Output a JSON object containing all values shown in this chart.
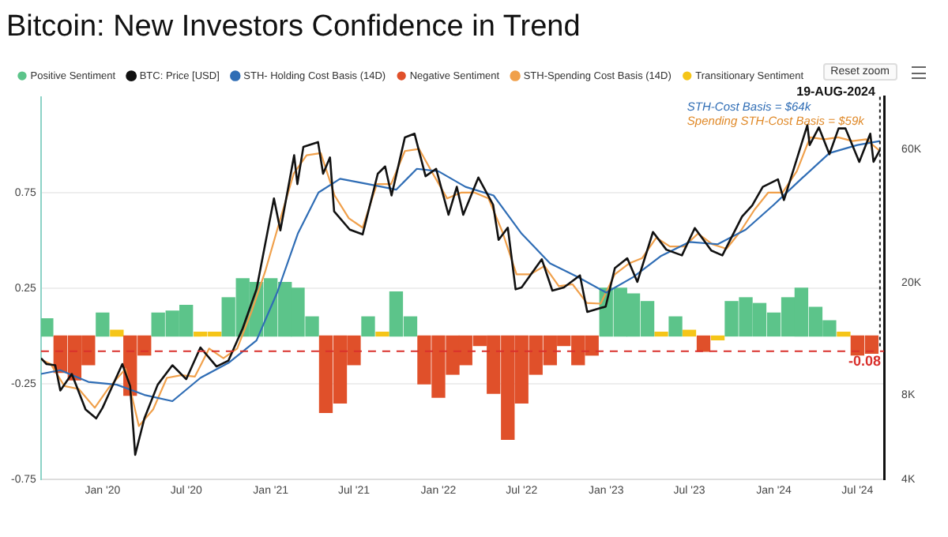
{
  "chart_data": {
    "type": "bar",
    "title": "Bitcoin: New Investors Confidence in Trend",
    "xlim": [
      "2019-08-20",
      "2024-08-28"
    ],
    "xticks": [
      {
        "value": "2020-01-01",
        "label": "Jan '20"
      },
      {
        "value": "2020-07-01",
        "label": "Jul '20"
      },
      {
        "value": "2021-01-01",
        "label": "Jan '21"
      },
      {
        "value": "2021-07-01",
        "label": "Jul '21"
      },
      {
        "value": "2022-01-01",
        "label": "Jan '22"
      },
      {
        "value": "2022-07-01",
        "label": "Jul '22"
      },
      {
        "value": "2023-01-01",
        "label": "Jan '23"
      },
      {
        "value": "2023-07-01",
        "label": "Jul '23"
      },
      {
        "value": "2024-01-01",
        "label": "Jan '24"
      },
      {
        "value": "2024-07-01",
        "label": "Jul '24"
      }
    ],
    "ylim": [
      -0.75,
      1.25
    ],
    "yticks": [
      -0.75,
      -0.25,
      0.25,
      0.75
    ],
    "y2lim": [
      4000,
      92000
    ],
    "y2ticks": [
      {
        "value": 4000,
        "label": "4K"
      },
      {
        "value": 8000,
        "label": "8K"
      },
      {
        "value": 20000,
        "label": "20K"
      },
      {
        "value": 60000,
        "label": "60K"
      }
    ],
    "log": "y2",
    "grid": "y",
    "legend": "top",
    "marker": "none",
    "line_style": "solid",
    "series": [
      {
        "name": "Positive Sentiment",
        "color": "#5cc48a",
        "x": [
          "2019-09",
          "2020-01",
          "2020-05",
          "2020-06",
          "2020-07",
          "2020-10",
          "2020-11",
          "2020-12",
          "2021-01",
          "2021-02",
          "2021-03",
          "2021-04",
          "2021-08",
          "2021-10",
          "2021-11",
          "2023-01",
          "2023-02",
          "2023-03",
          "2023-04",
          "2023-06",
          "2023-10",
          "2023-11",
          "2023-12",
          "2024-01",
          "2024-02",
          "2024-03",
          "2024-04",
          "2024-05"
        ],
        "values": [
          0.09,
          0.12,
          0.12,
          0.13,
          0.16,
          0.2,
          0.3,
          0.28,
          0.3,
          0.28,
          0.25,
          0.1,
          0.1,
          0.23,
          0.1,
          0.25,
          0.25,
          0.22,
          0.18,
          0.1,
          0.18,
          0.2,
          0.17,
          0.12,
          0.2,
          0.25,
          0.15,
          0.08
        ]
      },
      {
        "name": "BTC: Price [USD]",
        "type": "line",
        "axis": "y2",
        "color": "#111111",
        "x": [
          "2019-08-20",
          "2019-09-01",
          "2019-09-20",
          "2019-10-01",
          "2019-10-26",
          "2019-11-25",
          "2019-12-18",
          "2020-01-01",
          "2020-02-13",
          "2020-03-01",
          "2020-03-12",
          "2020-04-01",
          "2020-04-30",
          "2020-06-01",
          "2020-07-01",
          "2020-08-01",
          "2020-09-05",
          "2020-10-01",
          "2020-11-01",
          "2020-12-01",
          "2021-01-08",
          "2021-01-22",
          "2021-02-21",
          "2021-02-28",
          "2021-03-13",
          "2021-04-14",
          "2021-04-25",
          "2021-05-10",
          "2021-05-19",
          "2021-06-22",
          "2021-07-20",
          "2021-08-22",
          "2021-09-07",
          "2021-09-21",
          "2021-10-20",
          "2021-11-10",
          "2021-12-04",
          "2021-12-27",
          "2022-01-23",
          "2022-02-10",
          "2022-02-24",
          "2022-03-29",
          "2022-04-30",
          "2022-05-12",
          "2022-06-01",
          "2022-06-18",
          "2022-07-01",
          "2022-08-14",
          "2022-09-06",
          "2022-10-01",
          "2022-11-05",
          "2022-11-21",
          "2022-12-31",
          "2023-01-20",
          "2023-02-16",
          "2023-03-10",
          "2023-04-13",
          "2023-05-12",
          "2023-06-15",
          "2023-07-13",
          "2023-08-18",
          "2023-09-11",
          "2023-10-24",
          "2023-11-15",
          "2023-12-08",
          "2024-01-10",
          "2024-01-23",
          "2024-02-15",
          "2024-03-14",
          "2024-03-19",
          "2024-04-08",
          "2024-05-01",
          "2024-05-21",
          "2024-06-05",
          "2024-07-05",
          "2024-07-29",
          "2024-08-05",
          "2024-08-19"
        ],
        "values": [
          10800,
          10300,
          10200,
          8300,
          9500,
          7100,
          6600,
          7200,
          10300,
          8600,
          4900,
          6600,
          8700,
          10200,
          9100,
          11800,
          10100,
          10600,
          13800,
          19000,
          40000,
          30800,
          57000,
          45000,
          61000,
          63500,
          49000,
          56000,
          36000,
          31000,
          29800,
          49000,
          52000,
          41000,
          66000,
          68000,
          48000,
          51000,
          35000,
          44000,
          35000,
          47500,
          38000,
          28500,
          31500,
          19000,
          19300,
          24300,
          18800,
          19300,
          21300,
          15800,
          16500,
          22600,
          24500,
          20200,
          30400,
          26300,
          25100,
          31400,
          26100,
          25100,
          34500,
          37800,
          44000,
          46800,
          39500,
          52000,
          73000,
          62000,
          71600,
          57500,
          71000,
          71000,
          54000,
          68000,
          54000,
          59500
        ]
      },
      {
        "name": "STH- Holding Cost Basis (14D)",
        "type": "line",
        "axis": "y2",
        "color": "#2f6db5",
        "x": [
          "2019-08-20",
          "2019-10-01",
          "2019-12-01",
          "2020-02-01",
          "2020-04-01",
          "2020-06-01",
          "2020-08-01",
          "2020-10-01",
          "2020-12-01",
          "2021-01-15",
          "2021-03-01",
          "2021-04-15",
          "2021-06-01",
          "2021-08-01",
          "2021-10-01",
          "2021-11-15",
          "2022-01-01",
          "2022-03-01",
          "2022-05-01",
          "2022-07-01",
          "2022-09-01",
          "2022-11-01",
          "2023-01-01",
          "2023-03-01",
          "2023-05-01",
          "2023-07-01",
          "2023-09-01",
          "2023-11-01",
          "2024-01-01",
          "2024-03-01",
          "2024-05-01",
          "2024-07-01",
          "2024-08-19"
        ],
        "values": [
          9500,
          9800,
          8900,
          8700,
          8000,
          7600,
          9200,
          10400,
          12500,
          18500,
          30000,
          42000,
          47000,
          45000,
          43000,
          51000,
          50000,
          44000,
          41000,
          30000,
          23500,
          21000,
          18500,
          21000,
          25000,
          28000,
          27500,
          31000,
          38000,
          47000,
          58000,
          62000,
          64000
        ]
      },
      {
        "name": "Negative Sentiment",
        "color": "#e0502a",
        "x": [
          "2019-10",
          "2019-11",
          "2019-12",
          "2020-03",
          "2020-04",
          "2021-05",
          "2021-06",
          "2021-07",
          "2021-12",
          "2022-01",
          "2022-02",
          "2022-03",
          "2022-04",
          "2022-05",
          "2022-06",
          "2022-07",
          "2022-08",
          "2022-09",
          "2022-10",
          "2022-11",
          "2022-12",
          "2023-08",
          "2024-07",
          "2024-08"
        ],
        "values": [
          -0.19,
          -0.23,
          -0.15,
          -0.31,
          -0.1,
          -0.4,
          -0.35,
          -0.15,
          -0.25,
          -0.32,
          -0.2,
          -0.15,
          -0.05,
          -0.3,
          -0.54,
          -0.35,
          -0.2,
          -0.15,
          -0.05,
          -0.15,
          -0.1,
          -0.08,
          -0.1,
          -0.09
        ]
      },
      {
        "name": "STH-Spending Cost Basis (14D)",
        "type": "line",
        "axis": "y2",
        "color": "#f0a04b",
        "x": [
          "2019-08-20",
          "2019-09-10",
          "2019-10-10",
          "2019-11-10",
          "2019-12-15",
          "2020-01-15",
          "2020-02-20",
          "2020-03-20",
          "2020-04-20",
          "2020-05-20",
          "2020-06-20",
          "2020-07-20",
          "2020-08-20",
          "2020-09-20",
          "2020-10-20",
          "2020-11-20",
          "2020-12-20",
          "2021-01-20",
          "2021-02-20",
          "2021-03-20",
          "2021-04-20",
          "2021-05-20",
          "2021-06-20",
          "2021-07-20",
          "2021-08-20",
          "2021-09-20",
          "2021-10-20",
          "2021-11-20",
          "2021-12-20",
          "2022-01-20",
          "2022-02-20",
          "2022-03-20",
          "2022-04-20",
          "2022-05-20",
          "2022-06-20",
          "2022-07-20",
          "2022-08-20",
          "2022-09-20",
          "2022-10-20",
          "2022-11-20",
          "2022-12-20",
          "2023-01-20",
          "2023-02-20",
          "2023-03-20",
          "2023-04-20",
          "2023-05-20",
          "2023-06-20",
          "2023-07-20",
          "2023-08-20",
          "2023-09-20",
          "2023-10-20",
          "2023-11-20",
          "2023-12-20",
          "2024-01-20",
          "2024-02-20",
          "2024-03-20",
          "2024-04-20",
          "2024-05-20",
          "2024-06-20",
          "2024-07-20",
          "2024-08-19"
        ],
        "values": [
          10700,
          10300,
          8600,
          8400,
          7200,
          8500,
          9900,
          6200,
          7100,
          9200,
          9400,
          9300,
          11700,
          10800,
          11700,
          15800,
          22000,
          33000,
          49000,
          57000,
          58000,
          41000,
          34000,
          31500,
          45000,
          45000,
          59000,
          60000,
          49000,
          40000,
          42000,
          42000,
          40000,
          30500,
          21500,
          21500,
          23000,
          19500,
          19800,
          17000,
          16900,
          21500,
          23500,
          24500,
          29000,
          27000,
          27000,
          30000,
          27500,
          26500,
          30500,
          36500,
          42000,
          42000,
          50000,
          66000,
          65000,
          66000,
          64000,
          65000,
          59000
        ]
      },
      {
        "name": "Transitionary Sentiment",
        "color": "#f5c518",
        "x": [
          "2020-02",
          "2020-08",
          "2020-09",
          "2021-09",
          "2023-05",
          "2023-07",
          "2023-09",
          "2024-06"
        ],
        "values": [
          0.03,
          0.02,
          0.02,
          0.02,
          0.02,
          0.03,
          -0.02,
          0.02
        ]
      }
    ],
    "ref_lines": [
      {
        "axis": "x",
        "value": "2024-08-19",
        "label": "19-AUG-2024",
        "color": "#222222",
        "line_style": "dotted"
      },
      {
        "axis": "y",
        "value": -0.08,
        "label": "-0.08",
        "color": "#d9302c",
        "line_style": "dashed"
      }
    ],
    "annotations": [
      "STH-Cost Basis = $64k",
      "Spending STH-Cost Basis = $59k",
      "Reset zoom"
    ]
  }
}
